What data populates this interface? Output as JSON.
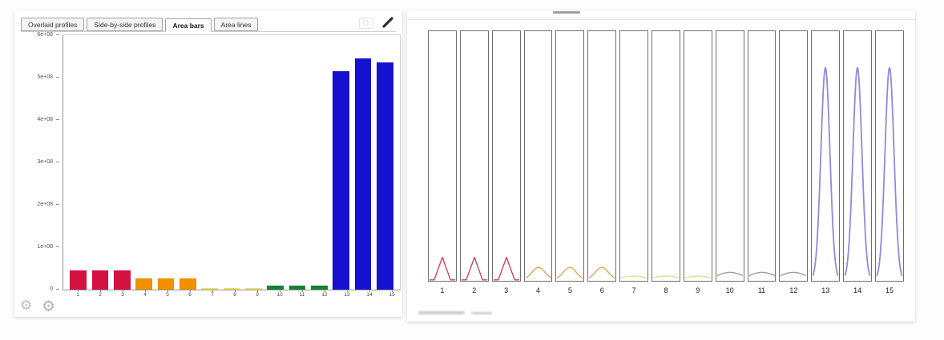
{
  "left_panel": {
    "tabs": [
      {
        "label": "Overlaid profiles",
        "active": false
      },
      {
        "label": "Side-by-side profiles",
        "active": false
      },
      {
        "label": "Area bars",
        "active": true
      },
      {
        "label": "Area lines",
        "active": false
      }
    ],
    "controls": {
      "camera_icon": "camera-icon",
      "expand_icon": "expand-diagonal-icon",
      "gear_icons": [
        "gear-icon",
        "gear-icon"
      ]
    }
  },
  "chart_data": [
    {
      "type": "bar",
      "title": "",
      "xlabel": "",
      "ylabel": "",
      "categories": [
        "1",
        "2",
        "3",
        "4",
        "5",
        "6",
        "7",
        "8",
        "9",
        "10",
        "11",
        "12",
        "13",
        "14",
        "15"
      ],
      "values": [
        45000000,
        45000000,
        45000000,
        27000000,
        27000000,
        27000000,
        4000000,
        4000000,
        4000000,
        10000000,
        10000000,
        10000000,
        515000000,
        545000000,
        535000000
      ],
      "bar_colors": [
        "#d3123f",
        "#d3123f",
        "#d3123f",
        "#f29000",
        "#f29000",
        "#f29000",
        "#f0e060",
        "#f0e060",
        "#f0e060",
        "#11832e",
        "#11832e",
        "#11832e",
        "#1512cf",
        "#1512cf",
        "#1512cf"
      ],
      "ylim": [
        0,
        600000000
      ],
      "grid": false,
      "legend": "none",
      "y_ticks": [
        {
          "value": 600000000,
          "label": "6e+08"
        },
        {
          "value": 500000000,
          "label": "5e+08"
        },
        {
          "value": 400000000,
          "label": "4e+08"
        },
        {
          "value": 300000000,
          "label": "3e+08"
        },
        {
          "value": 200000000,
          "label": "2e+08"
        },
        {
          "value": 100000000,
          "label": "1e+08"
        },
        {
          "value": 0,
          "label": "0"
        }
      ]
    },
    {
      "type": "area",
      "subtype": "faceted-profile-curves",
      "title": "",
      "categories": [
        "1",
        "2",
        "3",
        "4",
        "5",
        "6",
        "7",
        "8",
        "9",
        "10",
        "11",
        "12",
        "13",
        "14",
        "15"
      ],
      "peak_fractions": [
        0.09,
        0.09,
        0.09,
        0.05,
        0.05,
        0.05,
        0.015,
        0.015,
        0.015,
        0.03,
        0.03,
        0.03,
        0.85,
        0.85,
        0.85
      ],
      "curve_colors": [
        "#c4485f",
        "#c4485f",
        "#c4485f",
        "#d9aa55",
        "#d9aa55",
        "#d9aa55",
        "#e6dd8e",
        "#e6dd8e",
        "#e6dd8e",
        "#8fa48d",
        "#8fa48d",
        "#8fa48d",
        "#8c8cd9",
        "#8c8cd9",
        "#8c8cd9"
      ],
      "curve_shapes": [
        "sharp",
        "sharp",
        "sharp",
        "round",
        "round",
        "round",
        "flat",
        "flat",
        "flat",
        "flat",
        "flat",
        "flat",
        "spike",
        "spike",
        "spike"
      ],
      "facet_border_color": "#6e6e6e"
    }
  ]
}
